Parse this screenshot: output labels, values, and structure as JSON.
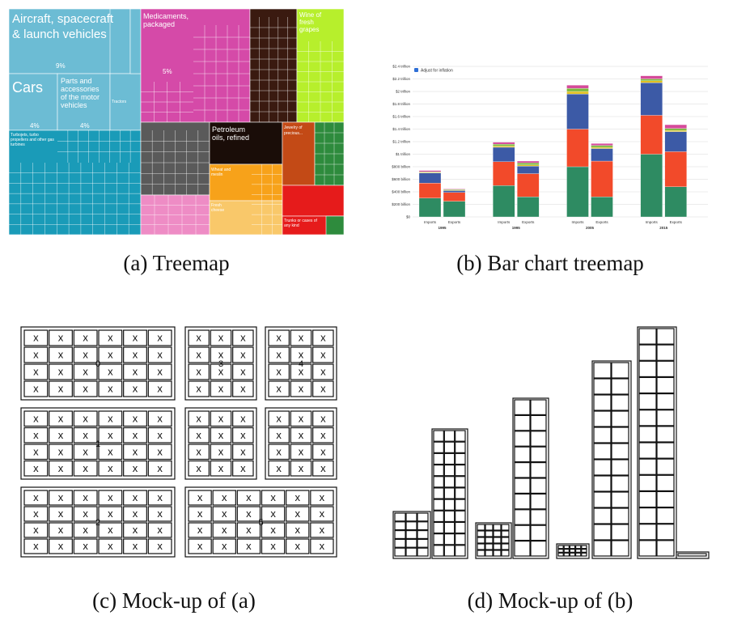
{
  "captions": {
    "a": "(a) Treemap",
    "b": "(b) Bar chart treemap",
    "c": "(c) Mock-up of (a)",
    "d": "(d) Mock-up of (b)"
  },
  "treemap": {
    "labels": {
      "aircraft": "Aircraft, spacecraft & launch vehicles",
      "aircraft_pct": "9%",
      "cars": "Cars",
      "cars_pct": "4%",
      "parts": "Parts and accessories of the motor vehicles",
      "parts_pct": "4%",
      "turbojets": "Turbojets, turbo propellers and other gas turbines",
      "medicaments": "Medicaments, packaged",
      "medicaments_pct": "5%",
      "wine": "Wine of fresh grapes",
      "petroleum": "Petroleum oils, refined",
      "jewelry": "Jewelry of precious...",
      "wheat": "Wheat and meslin",
      "cheese": "Fresh cheese",
      "trunks": "Trunks or cases of any kind",
      "tractors": "Tractors"
    },
    "colors": {
      "lightblue": "#6cbcd4",
      "teal": "#1a9bb8",
      "magenta": "#d54aa8",
      "darkbrown": "#3a1a10",
      "lime": "#b7ef2c",
      "gray": "#5a5a5a",
      "pink": "#ee8cc5",
      "orange": "#f7a21a",
      "lightorange": "#f9c86a",
      "red": "#e61b1b",
      "green": "#2e8b3d",
      "rust": "#c34a16"
    }
  },
  "chart_data": {
    "type": "bar",
    "legend": "Adjust for inflation",
    "legend_placement": "top-left",
    "y_ticks": [
      "$0",
      "$200 billion",
      "$400 billion",
      "$600 billion",
      "$800 billion",
      "$1 trillion",
      "$1.2 trillion",
      "$1.4 trillion",
      "$1.6 trillion",
      "$1.8 trillion",
      "$2 trillion",
      "$2.2 trillion",
      "$2.4 trillion"
    ],
    "ylim": [
      0,
      2.4
    ],
    "groups": [
      "1995",
      "1995",
      "2005",
      "2015"
    ],
    "bar_labels": [
      "Imports",
      "Exports"
    ],
    "segment_colors": [
      "#2e8b62",
      "#f24a2a",
      "#3c5aa6",
      "#e0c020",
      "#7ab83a",
      "#d54a9a"
    ],
    "bars": [
      {
        "group": "1995",
        "kind": "Imports",
        "segments": [
          0.3,
          0.24,
          0.16,
          0.01,
          0.01,
          0.02
        ]
      },
      {
        "group": "1995",
        "kind": "Exports",
        "segments": [
          0.25,
          0.14,
          0.03,
          0.01,
          0.01,
          0.01
        ]
      },
      {
        "group": "1995",
        "kind": "Imports",
        "segments": [
          0.5,
          0.38,
          0.23,
          0.02,
          0.03,
          0.03
        ]
      },
      {
        "group": "1995",
        "kind": "Exports",
        "segments": [
          0.32,
          0.37,
          0.12,
          0.02,
          0.03,
          0.03
        ]
      },
      {
        "group": "2005",
        "kind": "Imports",
        "segments": [
          0.8,
          0.6,
          0.56,
          0.04,
          0.05,
          0.05
        ]
      },
      {
        "group": "2005",
        "kind": "Exports",
        "segments": [
          0.32,
          0.57,
          0.2,
          0.02,
          0.03,
          0.03
        ]
      },
      {
        "group": "2015",
        "kind": "Imports",
        "segments": [
          1.0,
          0.62,
          0.52,
          0.03,
          0.03,
          0.05
        ]
      },
      {
        "group": "2015",
        "kind": "Exports",
        "segments": [
          0.48,
          0.56,
          0.32,
          0.02,
          0.03,
          0.06
        ]
      }
    ]
  },
  "mockup_c": {
    "x": "x",
    "numbers": [
      "0",
      "1",
      "2",
      "3",
      "4",
      "5"
    ]
  }
}
